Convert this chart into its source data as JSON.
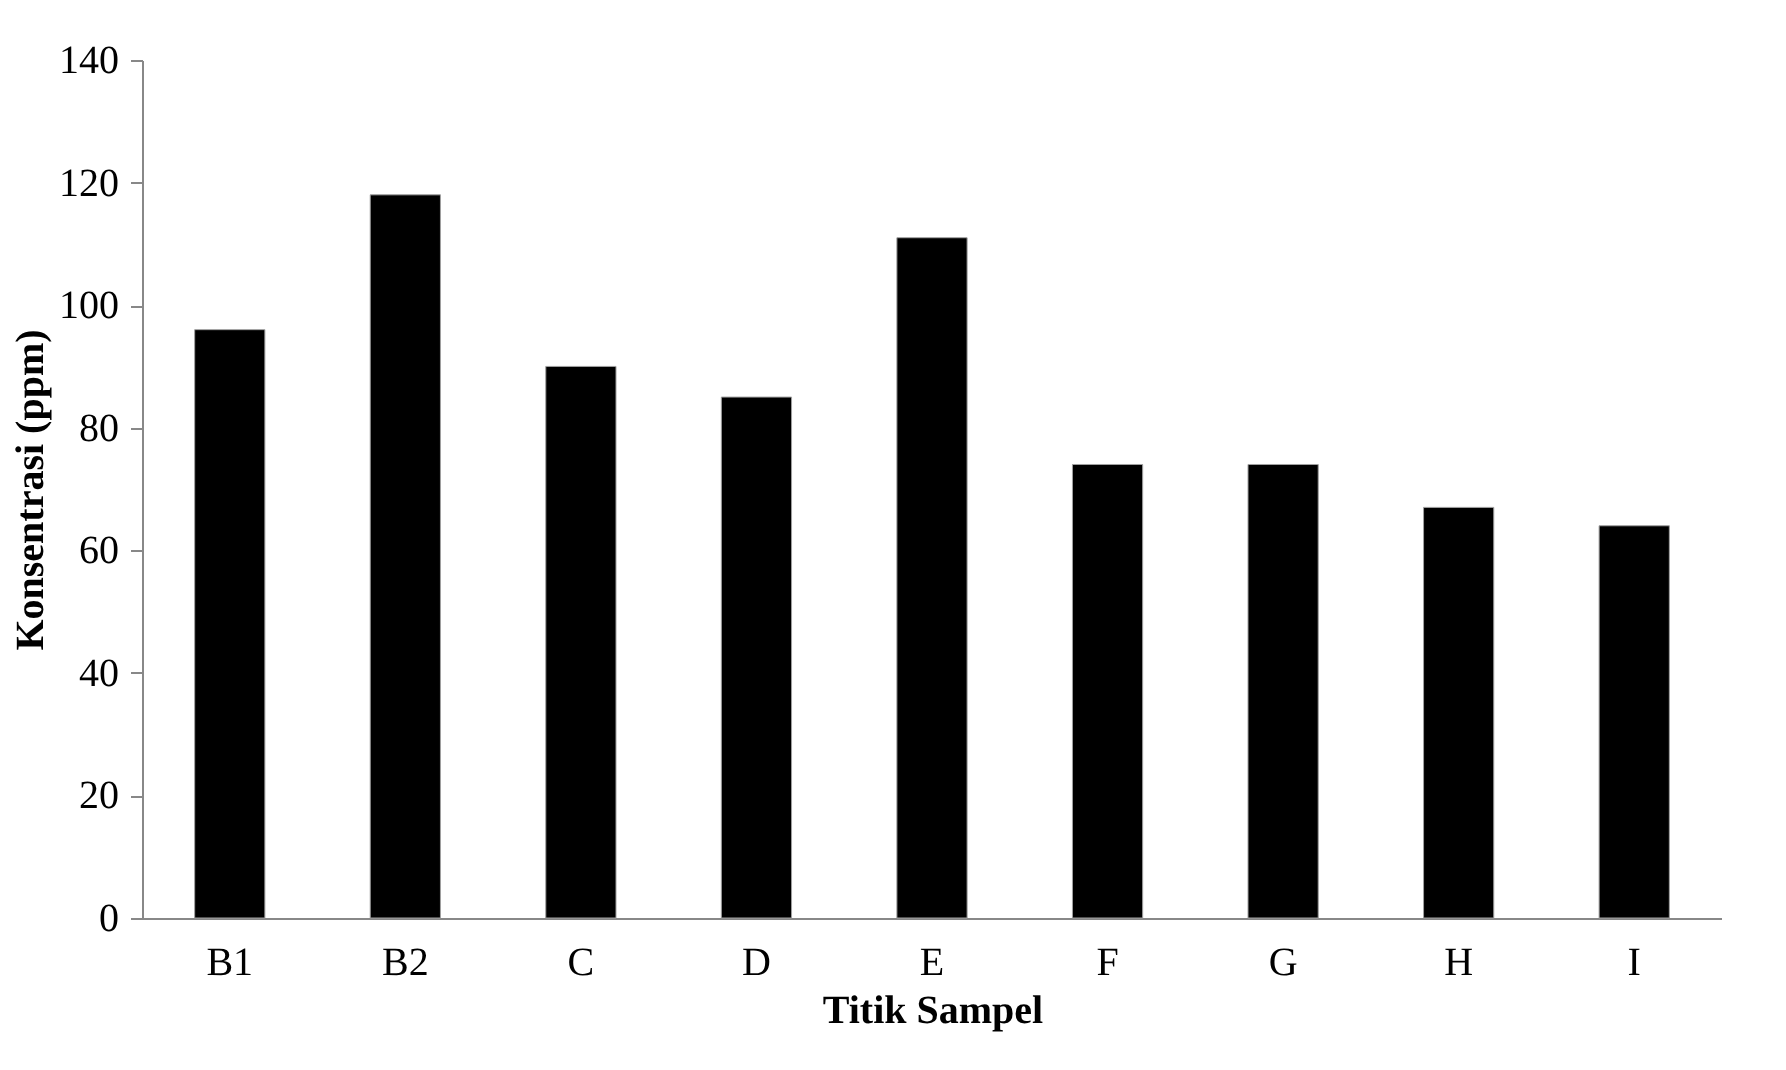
{
  "chart_data": {
    "type": "bar",
    "xlabel": "Titik Sampel",
    "ylabel": "Konsentrasi  (ppm)",
    "categories": [
      "B1",
      "B2",
      "C",
      "D",
      "E",
      "F",
      "G",
      "H",
      "I"
    ],
    "values": [
      96,
      118,
      90,
      85,
      111,
      74,
      74,
      67,
      64
    ],
    "color": "#000000",
    "ylim": [
      0,
      140
    ],
    "yticks": [
      0,
      20,
      40,
      60,
      80,
      100,
      120,
      140
    ],
    "grid": false
  }
}
